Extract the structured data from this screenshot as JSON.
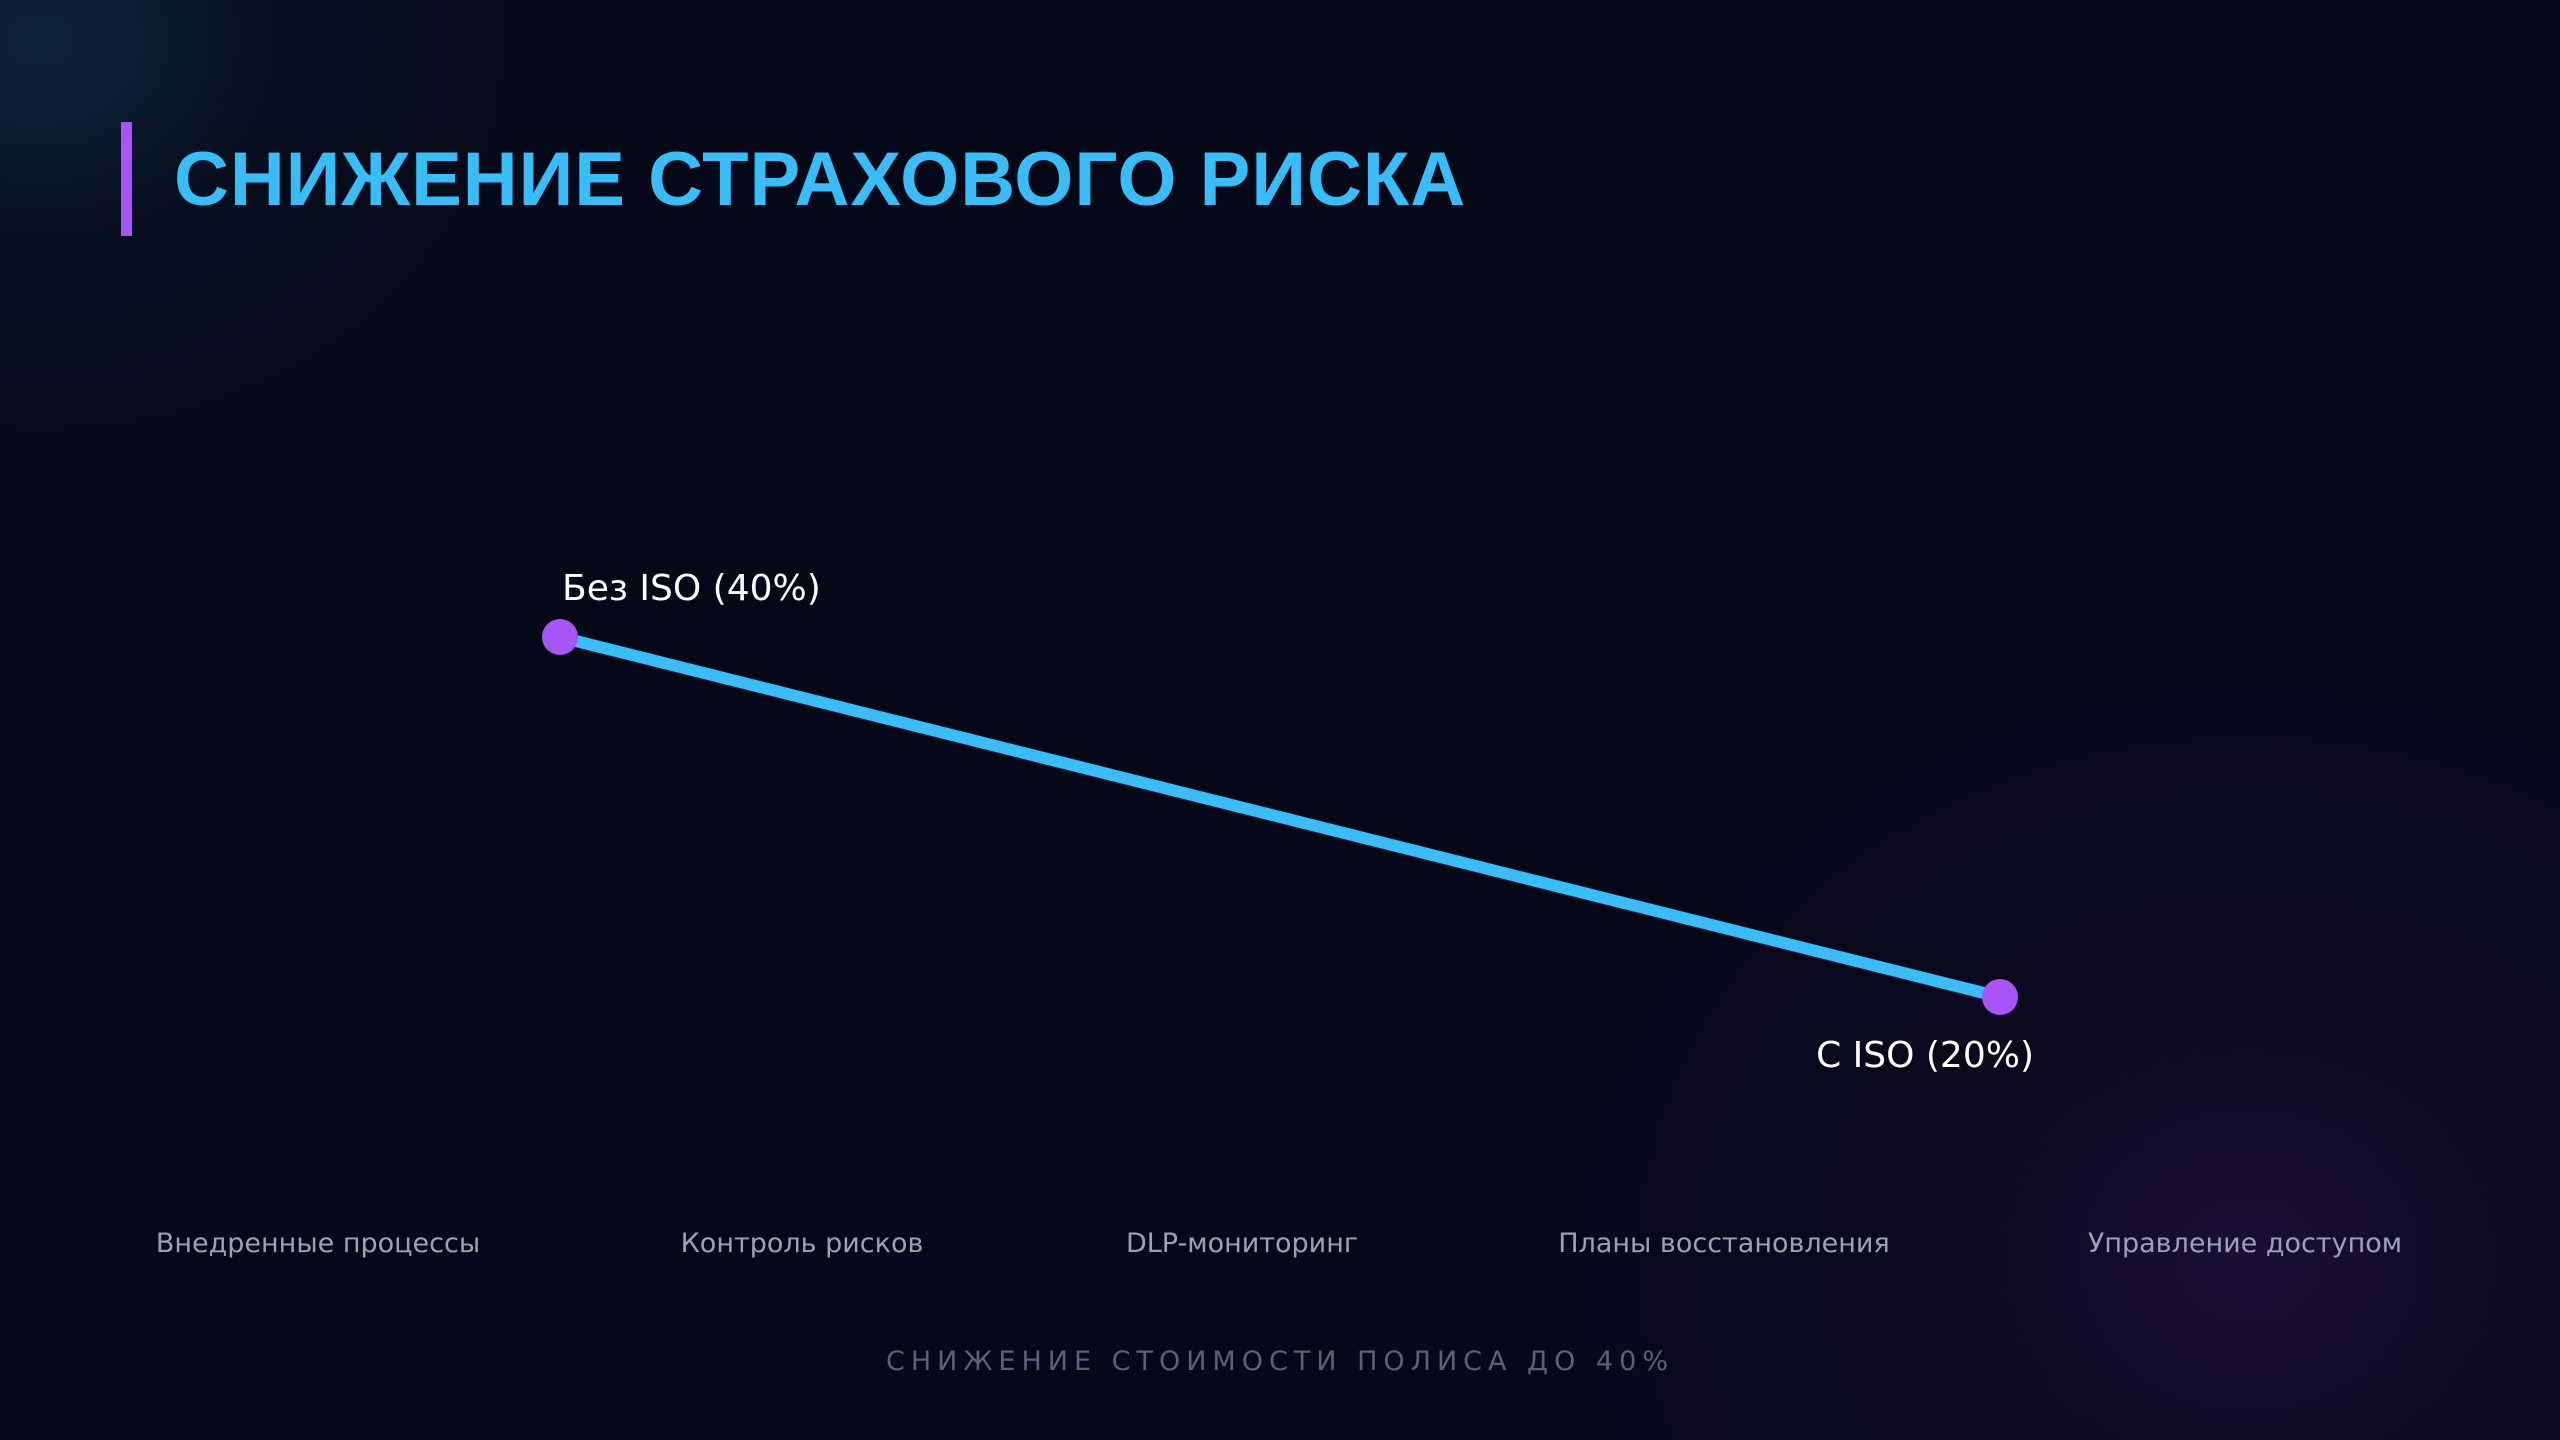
{
  "slide": {
    "title": "СНИЖЕНИЕ СТРАХОВОГО РИСКА",
    "footer": "СНИЖЕНИЕ СТОИМОСТИ ПОЛИСА ДО 40%"
  },
  "colors": {
    "background": "#050816",
    "title": "#38bdf8",
    "accent_bar": "#a855f7",
    "line": "#38bdf8",
    "point": "#a855f7",
    "point_label": "#ffffff",
    "category_text": "#9aa3b5",
    "footer_text": "#59607a"
  },
  "categories": [
    "Внедренные процессы",
    "Контроль рисков",
    "DLP-мониторинг",
    "Планы восстановления",
    "Управление доступом"
  ],
  "chart_data": {
    "type": "line",
    "title": "",
    "xlabel": "",
    "ylabel": "",
    "grid": false,
    "legend": "none",
    "series": [
      {
        "points": [
          {
            "label": "Без ISO (40%)",
            "value": 40
          },
          {
            "label": "С ISO (20%)",
            "value": 20
          }
        ]
      }
    ]
  }
}
